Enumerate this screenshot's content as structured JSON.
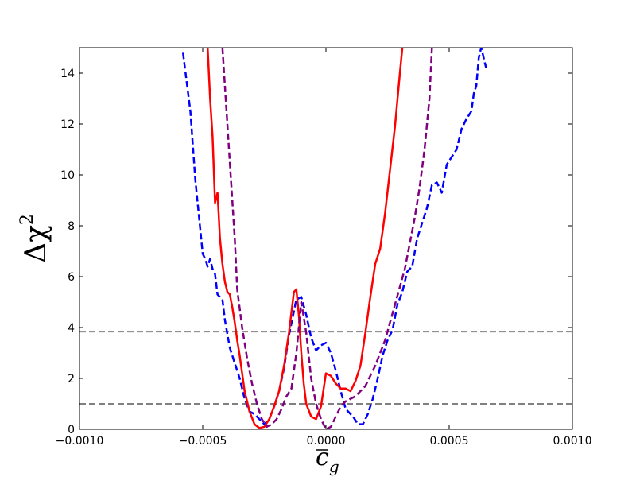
{
  "chart_data": {
    "type": "line",
    "title": "",
    "xlabel_base": "c",
    "xlabel_sub": "g",
    "ylabel_base": "Δχ",
    "ylabel_sup": "2",
    "xlim": [
      -0.001,
      0.001
    ],
    "ylim": [
      0,
      15
    ],
    "xticks": [
      -0.001,
      -0.0005,
      0.0,
      0.0005,
      0.001
    ],
    "xtick_labels": [
      "−0.0010",
      "−0.0005",
      "0.0000",
      "0.0005",
      "0.0010"
    ],
    "yticks": [
      0,
      2,
      4,
      6,
      8,
      10,
      12,
      14
    ],
    "ytick_labels": [
      "0",
      "2",
      "4",
      "6",
      "8",
      "10",
      "12",
      "14"
    ],
    "grid": false,
    "legend": "none",
    "reference_lines": [
      {
        "y": 1.0,
        "color": "#808080",
        "style": "dashed"
      },
      {
        "y": 3.84,
        "color": "#808080",
        "style": "dashed"
      }
    ],
    "series": [
      {
        "color": "#0000ff",
        "style": "dashed",
        "x": [
          -0.00058,
          -0.00055,
          -0.00053,
          -0.0005,
          -0.00049,
          -0.00048,
          -0.00047,
          -0.00046,
          -0.00045,
          -0.00044,
          -0.00042,
          -0.00041,
          -0.00039,
          -0.00037,
          -0.00035,
          -0.00033,
          -0.00031,
          -0.00029,
          -0.00027,
          -0.00025,
          -0.00023,
          -0.00021,
          -0.00019,
          -0.00017,
          -0.00015,
          -0.00012,
          -0.0001,
          -8e-05,
          -6e-05,
          -4e-05,
          -2e-05,
          0.0,
          2e-05,
          4e-05,
          6e-05,
          8e-05,
          0.00011,
          0.00013,
          0.00015,
          0.00017,
          0.00019,
          0.00021,
          0.00023,
          0.00025,
          0.00027,
          0.00029,
          0.00031,
          0.00033,
          0.00035,
          0.00037,
          0.00039,
          0.00041,
          0.00043,
          0.00045,
          0.00047,
          0.00049,
          0.00051,
          0.00053,
          0.00055,
          0.00057,
          0.00059,
          0.0006,
          0.00061,
          0.00062,
          0.00063,
          0.00064,
          0.00065
        ],
        "y": [
          14.8,
          12.5,
          9.8,
          6.9,
          6.7,
          6.4,
          6.7,
          6.3,
          6.1,
          5.3,
          5.1,
          4.3,
          3.2,
          2.6,
          2.0,
          1.2,
          0.7,
          0.6,
          0.4,
          0.2,
          0.4,
          0.9,
          1.5,
          2.4,
          3.7,
          5.1,
          5.2,
          4.5,
          3.6,
          3.1,
          3.3,
          3.4,
          3.0,
          2.3,
          1.5,
          0.8,
          0.5,
          0.2,
          0.2,
          0.6,
          1.2,
          2.0,
          2.9,
          3.5,
          3.9,
          4.9,
          5.4,
          6.2,
          6.4,
          7.5,
          8.1,
          8.7,
          9.6,
          9.7,
          9.3,
          10.4,
          10.7,
          11.0,
          11.8,
          12.2,
          12.5,
          13.2,
          13.5,
          14.6,
          15.0,
          14.6,
          14.2
        ]
      },
      {
        "color": "#ff0000",
        "style": "solid",
        "x": [
          -0.00048,
          -0.00047,
          -0.00046,
          -0.00045,
          -0.00044,
          -0.00043,
          -0.00042,
          -0.00041,
          -0.0004,
          -0.00039,
          -0.00038,
          -0.00037,
          -0.00036,
          -0.00035,
          -0.00033,
          -0.00031,
          -0.00029,
          -0.00027,
          -0.00025,
          -0.00023,
          -0.00021,
          -0.00019,
          -0.00017,
          -0.00015,
          -0.00013,
          -0.00012,
          -0.00011,
          -0.0001,
          -9e-05,
          -8e-05,
          -6e-05,
          -4e-05,
          -2e-05,
          0.0,
          2e-05,
          4e-05,
          6e-05,
          8e-05,
          0.0001,
          0.00012,
          0.00014,
          0.00016,
          0.00018,
          0.0002,
          0.00022,
          0.00024,
          0.00026,
          0.00028,
          0.0003,
          0.00031
        ],
        "y": [
          15.0,
          13.0,
          11.5,
          8.9,
          9.3,
          7.5,
          6.5,
          5.8,
          5.4,
          5.3,
          4.8,
          4.2,
          3.5,
          2.9,
          1.5,
          0.7,
          0.2,
          0.05,
          0.1,
          0.4,
          0.9,
          1.5,
          2.5,
          3.8,
          5.4,
          5.5,
          4.5,
          3.0,
          1.8,
          1.0,
          0.5,
          0.4,
          0.9,
          2.2,
          2.1,
          1.8,
          1.6,
          1.6,
          1.5,
          1.9,
          2.5,
          3.8,
          5.2,
          6.5,
          7.1,
          8.5,
          10.2,
          11.9,
          14.0,
          15.0
        ]
      },
      {
        "color": "#800080",
        "style": "dashed",
        "x": [
          -0.00042,
          -0.00041,
          -0.0004,
          -0.00039,
          -0.00038,
          -0.00037,
          -0.00036,
          -0.00034,
          -0.00032,
          -0.0003,
          -0.00028,
          -0.00026,
          -0.00024,
          -0.00022,
          -0.0002,
          -0.00018,
          -0.00016,
          -0.00014,
          -0.00012,
          -0.0001,
          -8e-05,
          -6e-05,
          -4e-05,
          -2e-05,
          0.0,
          2e-05,
          4e-05,
          6e-05,
          8e-05,
          0.0001,
          0.00012,
          0.00014,
          0.00016,
          0.00018,
          0.0002,
          0.00022,
          0.00024,
          0.00026,
          0.00028,
          0.0003,
          0.00032,
          0.00034,
          0.00036,
          0.00038,
          0.0004,
          0.00042,
          0.00043
        ],
        "y": [
          15.0,
          13.5,
          12.0,
          10.5,
          9.0,
          7.5,
          5.5,
          4.0,
          2.8,
          1.8,
          1.0,
          0.4,
          0.1,
          0.2,
          0.4,
          0.8,
          1.3,
          1.6,
          3.0,
          5.0,
          3.8,
          2.0,
          1.0,
          0.4,
          0.0,
          0.1,
          0.5,
          0.9,
          1.1,
          1.2,
          1.3,
          1.5,
          1.7,
          2.1,
          2.5,
          3.0,
          3.5,
          4.2,
          4.9,
          5.6,
          6.3,
          7.3,
          8.3,
          9.5,
          11.0,
          13.0,
          15.0
        ]
      }
    ]
  }
}
